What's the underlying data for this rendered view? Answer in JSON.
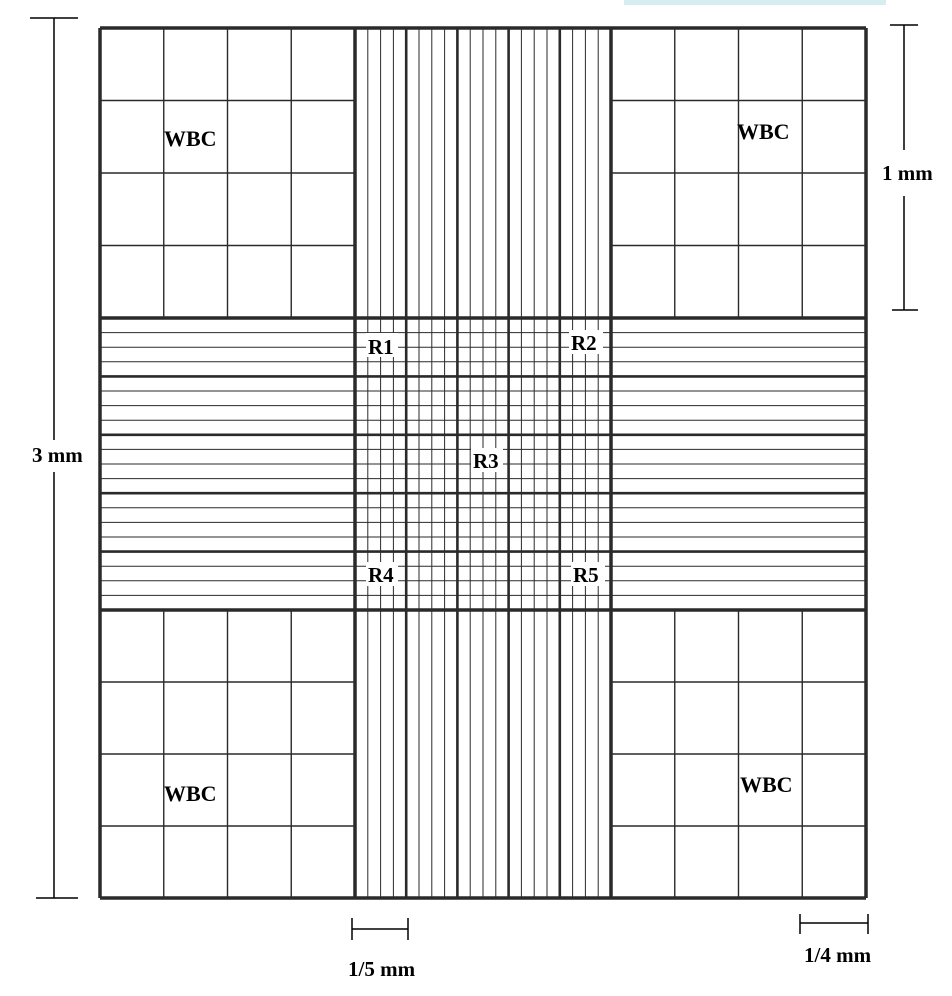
{
  "labels": {
    "wbc_top_left": "WBC",
    "wbc_top_right": "WBC",
    "wbc_bottom_left": "WBC",
    "wbc_bottom_right": "WBC",
    "r1": "R1",
    "r2": "R2",
    "r3": "R3",
    "r4": "R4",
    "r5": "R5"
  },
  "scales": {
    "total": "3 mm",
    "square": "1 mm",
    "rbc_subdivision": "1/5 mm",
    "wbc_subdivision": "1/4 mm"
  },
  "colors": {
    "grid": "#2a2a2a",
    "background": "#ffffff",
    "tab_accent": "#d9ecef"
  }
}
